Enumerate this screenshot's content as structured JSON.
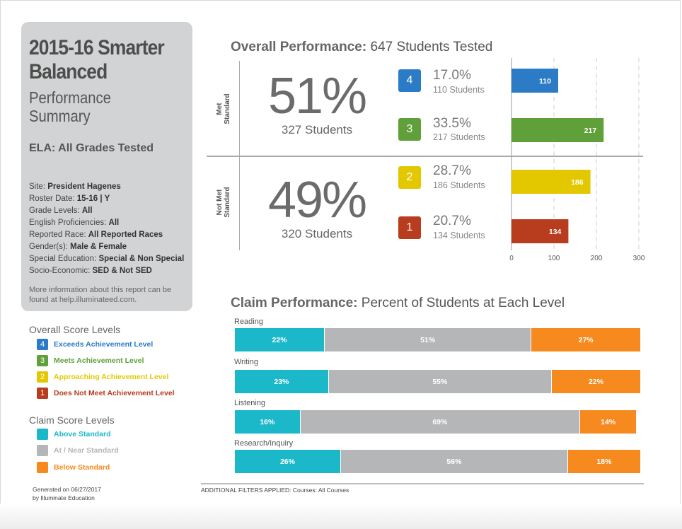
{
  "header": {
    "title": "2015-16 Smarter Balanced",
    "subtitle": "Performance Summary",
    "subject": "ELA: All Grades Tested"
  },
  "filters": [
    {
      "label": "Site:",
      "value": "President Hagenes"
    },
    {
      "label": "Roster Date:",
      "value": "15-16 | Y"
    },
    {
      "label": "Grade Levels:",
      "value": "All"
    },
    {
      "label": "English Proficiencies:",
      "value": "All"
    },
    {
      "label": "Reported Race:",
      "value": "All Reported Races"
    },
    {
      "label": "Gender(s):",
      "value": "Male & Female"
    },
    {
      "label": "Special Education:",
      "value": "Special & Non Special"
    },
    {
      "label": "Socio-Economic:",
      "value": "SED & Not SED"
    }
  ],
  "more_info": "More information about this report can be found at help.illuminateed.com.",
  "overall_legend": {
    "title": "Overall Score Levels",
    "items": [
      {
        "num": "4",
        "label": "Exceeds Achievement Level",
        "color": "#2b7bc6"
      },
      {
        "num": "3",
        "label": "Meets Achievement Level",
        "color": "#5fa03a"
      },
      {
        "num": "2",
        "label": "Approaching Achievement Level",
        "color": "#e3c800"
      },
      {
        "num": "1",
        "label": "Does Not Meet Achievement Level",
        "color": "#b83c1e"
      }
    ]
  },
  "claim_legend": {
    "title": "Claim Score Levels",
    "items": [
      {
        "label": "Above Standard",
        "color": "#1bb8c9"
      },
      {
        "label": "At / Near Standard",
        "color": "#b5b6b8"
      },
      {
        "label": "Below Standard",
        "color": "#f68a1e"
      }
    ]
  },
  "generated": {
    "line1": "Generated on 06/27/2017",
    "line2": "by Illuminate Education"
  },
  "overall": {
    "title_bold": "Overall Performance:",
    "title_rest": "647 Students Tested",
    "met": {
      "label_line1": "Met",
      "label_line2": "Standard",
      "pct": "51%",
      "students": "327 Students"
    },
    "notmet": {
      "label_line1": "Not Met",
      "label_line2": "Standard",
      "pct": "49%",
      "students": "320 Students"
    },
    "levels": [
      {
        "num": "4",
        "pct": "17.0%",
        "students": "110 Students"
      },
      {
        "num": "3",
        "pct": "33.5%",
        "students": "217 Students"
      },
      {
        "num": "2",
        "pct": "28.7%",
        "students": "186 Students"
      },
      {
        "num": "1",
        "pct": "20.7%",
        "students": "134 Students"
      }
    ]
  },
  "claims": {
    "title_bold": "Claim Performance:",
    "title_rest": "Percent of Students at Each Level",
    "additional_label": "ADDITIONAL FILTERS APPLIED:",
    "additional_value": "Courses: All Courses"
  },
  "chart_data": [
    {
      "type": "bar",
      "orientation": "horizontal",
      "categories": [
        "4",
        "3",
        "2",
        "1"
      ],
      "values": [
        110,
        217,
        186,
        134
      ],
      "colors": [
        "#2b7bc6",
        "#5fa03a",
        "#e3c800",
        "#b83c1e"
      ],
      "xlim": [
        0,
        300
      ],
      "xticks": [
        0,
        100,
        200,
        300
      ],
      "grid": "vertical dashed"
    },
    {
      "type": "bar",
      "orientation": "horizontal",
      "stacked": true,
      "categories": [
        "Reading",
        "Writing",
        "Listening",
        "Research/Inquiry"
      ],
      "series": [
        {
          "name": "Above Standard",
          "values": [
            22,
            23,
            16,
            26
          ],
          "color": "#1bb8c9"
        },
        {
          "name": "At / Near Standard",
          "values": [
            51,
            55,
            69,
            56
          ],
          "color": "#b5b6b8"
        },
        {
          "name": "Below Standard",
          "values": [
            27,
            22,
            14,
            18
          ],
          "color": "#f68a1e"
        }
      ]
    }
  ]
}
